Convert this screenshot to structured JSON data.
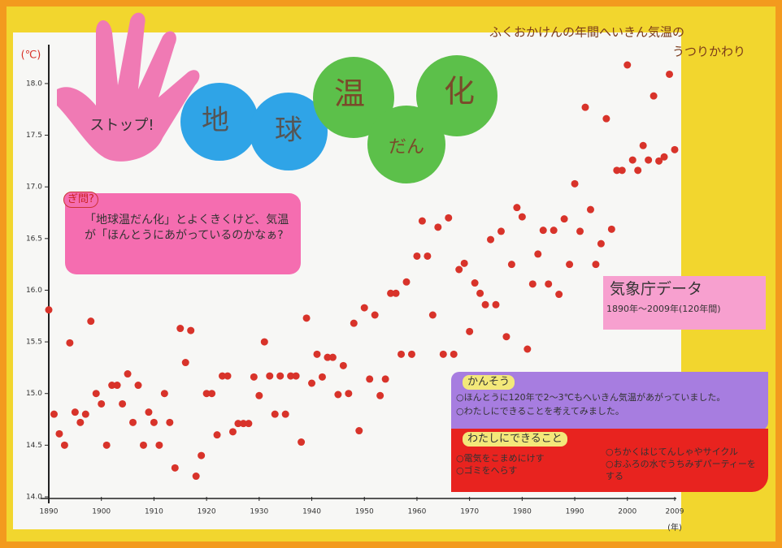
{
  "chart_data": {
    "type": "scatter",
    "title": "ふくおかけんの年間へいきん気温の",
    "title_line2": "うつりかわり",
    "ylabel": "(℃)",
    "xlabel": "(年)",
    "color": "#d8332a",
    "xlim": [
      1890,
      2009
    ],
    "ylim": [
      14.0,
      18.4
    ],
    "xticks": [
      1890,
      1900,
      1910,
      1920,
      1930,
      1940,
      1950,
      1960,
      1970,
      1980,
      1990,
      2000,
      2009
    ],
    "yticks": [
      {
        "value": 14,
        "label": "14.0"
      },
      14.5,
      {
        "value": 15,
        "label": "15.0"
      },
      15.5,
      {
        "value": 16,
        "label": "16.0"
      },
      16.5,
      {
        "value": 17,
        "label": "17.0"
      },
      17.5,
      {
        "value": 18,
        "label": "18.0"
      }
    ],
    "x": [
      1890,
      1891,
      1892,
      1893,
      1894,
      1895,
      1896,
      1897,
      1898,
      1899,
      1900,
      1901,
      1902,
      1903,
      1904,
      1905,
      1906,
      1907,
      1908,
      1909,
      1910,
      1911,
      1912,
      1913,
      1914,
      1915,
      1916,
      1917,
      1918,
      1919,
      1920,
      1921,
      1922,
      1923,
      1924,
      1925,
      1926,
      1927,
      1928,
      1929,
      1930,
      1931,
      1932,
      1933,
      1934,
      1935,
      1936,
      1937,
      1938,
      1939,
      1940,
      1941,
      1942,
      1943,
      1944,
      1945,
      1946,
      1947,
      1948,
      1949,
      1950,
      1951,
      1952,
      1953,
      1954,
      1955,
      1956,
      1957,
      1958,
      1959,
      1960,
      1961,
      1962,
      1963,
      1964,
      1965,
      1966,
      1967,
      1968,
      1969,
      1970,
      1971,
      1972,
      1973,
      1974,
      1975,
      1976,
      1977,
      1978,
      1979,
      1980,
      1981,
      1982,
      1983,
      1984,
      1985,
      1986,
      1987,
      1988,
      1989,
      1990,
      1991,
      1992,
      1993,
      1994,
      1995,
      1996,
      1997,
      1998,
      1999,
      2000,
      2001,
      2002,
      2003,
      2004,
      2005,
      2006,
      2007,
      2008,
      2009
    ],
    "values": [
      15.81,
      14.8,
      14.61,
      14.5,
      15.49,
      14.82,
      14.72,
      14.8,
      15.7,
      15.0,
      14.9,
      14.5,
      15.08,
      15.08,
      14.9,
      15.19,
      14.72,
      15.08,
      14.5,
      14.82,
      14.72,
      14.5,
      15.0,
      14.72,
      14.28,
      15.63,
      15.3,
      15.61,
      14.2,
      14.4,
      15.0,
      15.0,
      14.6,
      15.17,
      15.17,
      14.63,
      14.71,
      14.71,
      14.71,
      15.16,
      14.98,
      15.5,
      15.17,
      14.8,
      15.17,
      14.8,
      15.17,
      15.17,
      14.53,
      15.73,
      15.1,
      15.38,
      15.16,
      15.35,
      15.35,
      14.99,
      15.27,
      15.0,
      15.68,
      14.64,
      15.83,
      15.14,
      15.76,
      14.98,
      15.14,
      15.97,
      15.97,
      15.38,
      16.08,
      15.38,
      16.33,
      16.67,
      16.33,
      15.76,
      16.61,
      15.38,
      16.7,
      15.38,
      16.2,
      16.26,
      15.6,
      16.07,
      15.97,
      15.86,
      16.49,
      15.86,
      16.57,
      15.55,
      16.25,
      16.8,
      16.71,
      15.43,
      16.06,
      16.35,
      16.58,
      16.06,
      16.58,
      15.96,
      16.69,
      16.25,
      17.03,
      16.57,
      17.77,
      16.78,
      16.25,
      16.45,
      17.66,
      16.59,
      17.16,
      17.16,
      18.18,
      17.26,
      17.16,
      17.4,
      17.26,
      17.88,
      17.25,
      17.29,
      18.09,
      17.36
    ]
  },
  "decorations": {
    "hand": "ストップ!",
    "circles": [
      "地",
      "球",
      "温",
      "だん",
      "化"
    ]
  },
  "question": {
    "heading": "ぎ問?",
    "text": "「地球温だん化」とよくきくけど、気温が「ほんとうにあがっているのかなぁ?"
  },
  "source": {
    "title": "気象庁データ",
    "period": "1890年〜2009年(120年間)"
  },
  "impressions": {
    "heading": "かんそう",
    "items": [
      "○ほんとうに120年で2〜3℃もへいきん気温があがっていました。",
      "○わたしにできることを考えてみました。"
    ]
  },
  "actions": {
    "heading": "わたしにできること",
    "left": [
      "○電気をこまめにけす",
      "○ゴミをへらす"
    ],
    "right": [
      "○ちかくはじてんしゃやサイクル",
      "○おふろの水でうちみずパーティーをする"
    ]
  }
}
